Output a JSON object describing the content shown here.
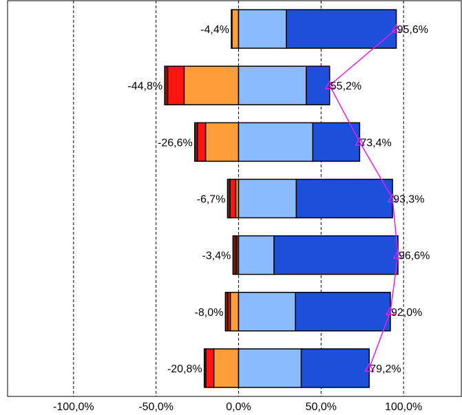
{
  "chart_data": {
    "type": "bar",
    "orientation": "horizontal",
    "stacking": "diverging",
    "xlim": [
      -1.4,
      1.35
    ],
    "x_ticks": [
      "-100,0%",
      "-50,0%",
      "0,0%",
      "50,0%",
      "100,0%"
    ],
    "x_tick_values": [
      -1.0,
      -0.5,
      0.0,
      0.5,
      1.0
    ],
    "grid": "vertical dashed",
    "legend": "none",
    "rows": [
      {
        "neg": [
          -0.04,
          -0.004,
          0.0
        ],
        "pos": [
          0.29,
          0.666
        ],
        "neg_label": "-4,4%",
        "pos_label": "95,6%",
        "neg_total": -0.044,
        "pos_total": 0.956
      },
      {
        "neg": [
          -0.33,
          -0.1,
          -0.018
        ],
        "pos": [
          0.41,
          0.142
        ],
        "neg_label": "-44,8%",
        "pos_label": "55,2%",
        "neg_total": -0.448,
        "pos_total": 0.552
      },
      {
        "neg": [
          -0.2,
          -0.05,
          -0.016
        ],
        "pos": [
          0.45,
          0.284
        ],
        "neg_label": "-26,6%",
        "pos_label": "73,4%",
        "neg_total": -0.266,
        "pos_total": 0.734
      },
      {
        "neg": [
          -0.017,
          -0.035,
          -0.015
        ],
        "pos": [
          0.35,
          0.583
        ],
        "neg_label": "-6,7%",
        "pos_label": "93,3%",
        "neg_total": -0.067,
        "pos_total": 0.933
      },
      {
        "neg": [
          -0.01,
          -0.01,
          -0.014
        ],
        "pos": [
          0.215,
          0.751
        ],
        "neg_label": "-3,4%",
        "pos_label": "96,6%",
        "neg_total": -0.034,
        "pos_total": 0.966
      },
      {
        "neg": [
          -0.05,
          -0.015,
          -0.015
        ],
        "pos": [
          0.345,
          0.575
        ],
        "neg_label": "-8,0%",
        "pos_label": "92,0%",
        "neg_total": -0.08,
        "pos_total": 0.92
      },
      {
        "neg": [
          -0.15,
          -0.048,
          -0.01
        ],
        "pos": [
          0.38,
          0.412
        ],
        "neg_label": "-20,8%",
        "pos_label": "79,2%",
        "neg_total": -0.208,
        "pos_total": 0.792
      }
    ],
    "line_series": [
      0.956,
      0.552,
      0.734,
      0.933,
      0.966,
      0.92,
      0.792
    ]
  },
  "colors": {
    "neg": [
      "#FF9D3A",
      "#FF1414",
      "#8A1E00"
    ],
    "pos": [
      "#8ABBFF",
      "#1E4FDB"
    ],
    "line": "#E61EE6",
    "grid": "#000000"
  }
}
